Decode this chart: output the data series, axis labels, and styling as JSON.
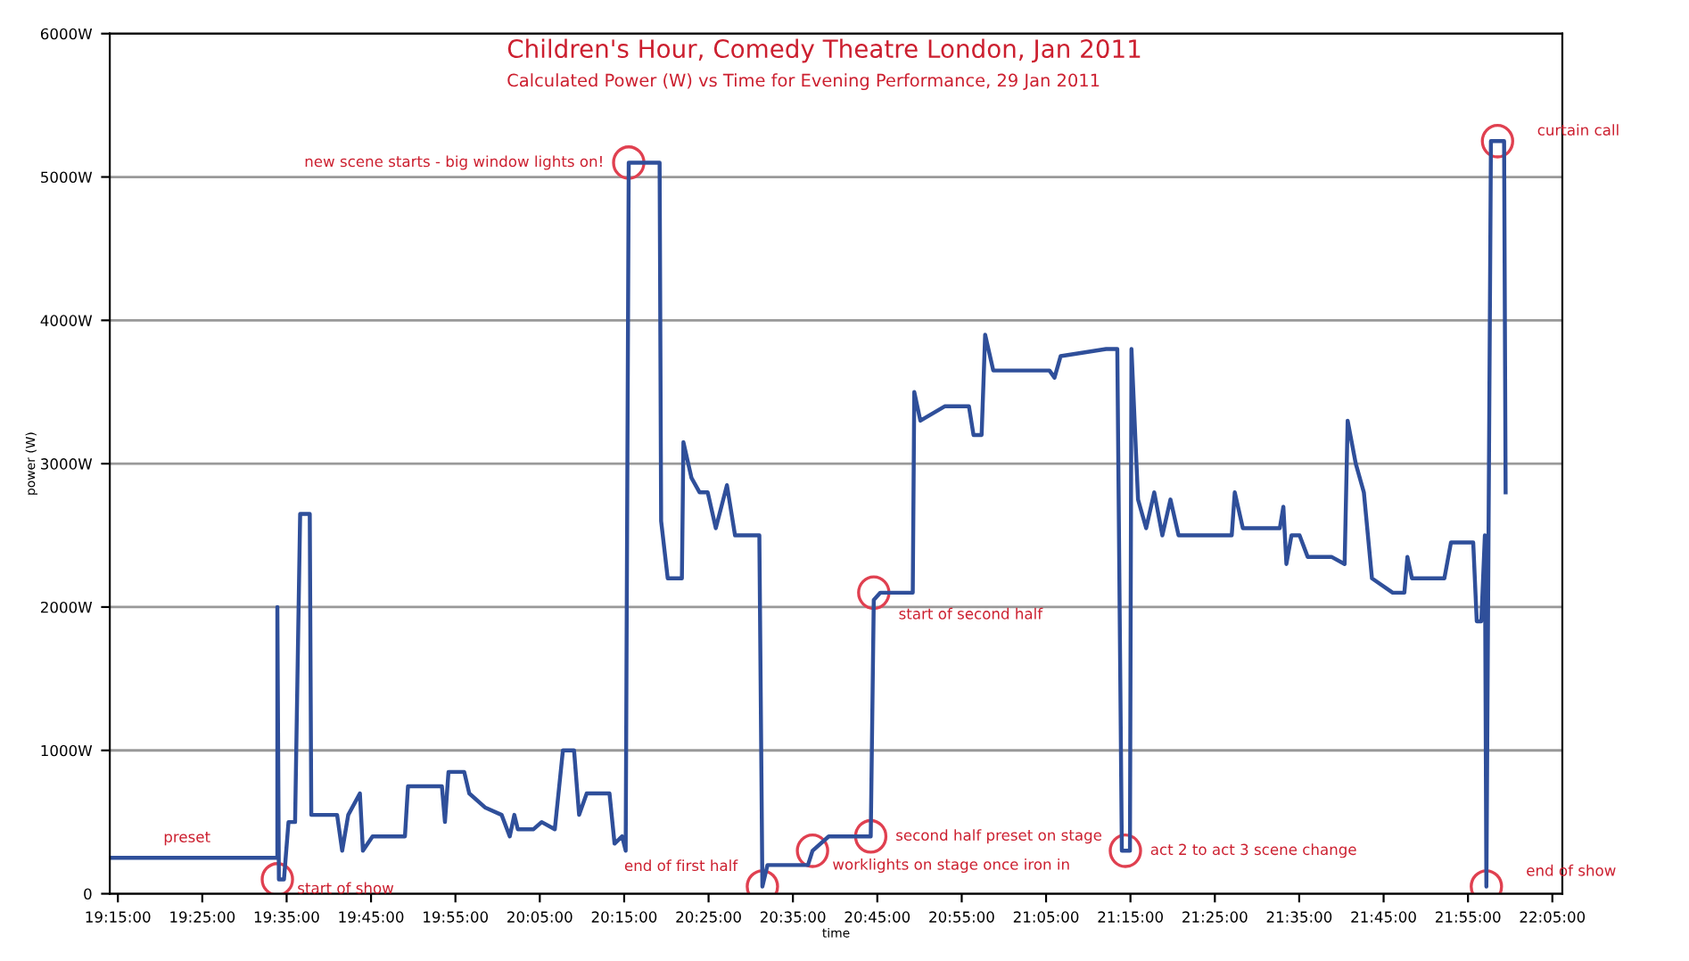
{
  "chart_data": {
    "type": "line",
    "title": "Children's Hour, Comedy Theatre London, Jan 2011",
    "subtitle": "Calculated Power (W) vs Time for Evening Performance, 29 Jan 2011",
    "xlabel": "time",
    "ylabel": "power (W)",
    "x": [
      19.234,
      19.562,
      19.565,
      19.565,
      19.568,
      19.578,
      19.587,
      19.6,
      19.61,
      19.629,
      19.632,
      19.683,
      19.693,
      19.705,
      19.728,
      19.734,
      19.753,
      19.817,
      19.823,
      19.89,
      19.896,
      19.903,
      19.934,
      19.944,
      19.976,
      20.008,
      20.024,
      20.033,
      20.04,
      20.071,
      20.087,
      20.113,
      20.129,
      20.151,
      20.161,
      20.176,
      20.221,
      20.231,
      20.246,
      20.253,
      20.259,
      20.32,
      20.323,
      20.336,
      20.364,
      20.367,
      20.383,
      20.399,
      20.415,
      20.431,
      20.453,
      20.469,
      20.517,
      20.523,
      20.533,
      20.613,
      20.622,
      20.654,
      20.737,
      20.743,
      20.756,
      20.82,
      20.823,
      20.835,
      20.883,
      20.931,
      20.94,
      20.956,
      20.963,
      20.979,
      21.09,
      21.1,
      21.112,
      21.202,
      21.224,
      21.233,
      21.249,
      21.252,
      21.265,
      21.281,
      21.297,
      21.313,
      21.329,
      21.345,
      21.386,
      21.45,
      21.456,
      21.472,
      21.545,
      21.552,
      21.558,
      21.568,
      21.584,
      21.6,
      21.647,
      21.673,
      21.679,
      21.695,
      21.711,
      21.727,
      21.768,
      21.791,
      21.797,
      21.806,
      21.87,
      21.883,
      21.927,
      21.934,
      21.943,
      21.95,
      21.953,
      21.962,
      21.988,
      21.991
    ],
    "series": [
      {
        "color": "#2f4f9a",
        "values": [
          250,
          250,
          250,
          2000,
          100,
          100,
          500,
          500,
          2650,
          2650,
          550,
          550,
          300,
          550,
          700,
          300,
          400,
          400,
          750,
          750,
          500,
          850,
          850,
          700,
          600,
          550,
          400,
          550,
          450,
          450,
          500,
          450,
          1000,
          1000,
          550,
          700,
          700,
          350,
          400,
          300,
          5100,
          5100,
          2600,
          2200,
          2200,
          3150,
          2900,
          2800,
          2800,
          2550,
          2850,
          2500,
          2500,
          50,
          200,
          200,
          300,
          400,
          400,
          2050,
          2100,
          2100,
          3500,
          3300,
          3400,
          3400,
          3200,
          3200,
          3900,
          3650,
          3650,
          3600,
          3750,
          3800,
          3800,
          300,
          300,
          3800,
          2750,
          2550,
          2800,
          2500,
          2750,
          2500,
          2500,
          2500,
          2800,
          2550,
          2550,
          2700,
          2300,
          2500,
          2500,
          2350,
          2350,
          2300,
          3300,
          3000,
          2800,
          2200,
          2100,
          2100,
          2350,
          2200,
          2200,
          2450,
          2450,
          1900,
          1900,
          2500,
          50,
          5250,
          5250,
          2800
        ]
      }
    ],
    "xlim": [
      19.234,
      22.103
    ],
    "xticks": [
      {
        "value": 19.25,
        "label": "19:15:00"
      },
      {
        "value": 19.4167,
        "label": "19:25:00"
      },
      {
        "value": 19.5833,
        "label": "19:35:00"
      },
      {
        "value": 19.75,
        "label": "19:45:00"
      },
      {
        "value": 19.9167,
        "label": "19:55:00"
      },
      {
        "value": 20.0833,
        "label": "20:05:00"
      },
      {
        "value": 20.25,
        "label": "20:15:00"
      },
      {
        "value": 20.4167,
        "label": "20:25:00"
      },
      {
        "value": 20.5833,
        "label": "20:35:00"
      },
      {
        "value": 20.75,
        "label": "20:45:00"
      },
      {
        "value": 20.9167,
        "label": "20:55:00"
      },
      {
        "value": 21.0833,
        "label": "21:05:00"
      },
      {
        "value": 21.25,
        "label": "21:15:00"
      },
      {
        "value": 21.4167,
        "label": "21:25:00"
      },
      {
        "value": 21.5833,
        "label": "21:35:00"
      },
      {
        "value": 21.75,
        "label": "21:45:00"
      },
      {
        "value": 21.9167,
        "label": "21:55:00"
      },
      {
        "value": 22.0833,
        "label": "22:05:00"
      }
    ],
    "ylim": [
      0,
      6000
    ],
    "yticks": [
      0,
      {
        "value": 1000,
        "label": "1000W"
      },
      {
        "value": 2000,
        "label": "2000W"
      },
      {
        "value": 3000,
        "label": "3000W"
      },
      {
        "value": 4000,
        "label": "4000W"
      },
      {
        "value": 5000,
        "label": "5000W"
      },
      {
        "value": 6000,
        "label": "6000W"
      }
    ],
    "grid": "y",
    "annotations": [
      {
        "text": "preset",
        "x": 19.34,
        "y": 250
      },
      {
        "text": "start of show",
        "x": 19.565,
        "y": 100
      },
      {
        "text": "new scene starts - big window lights on!",
        "x": 20.259,
        "y": 5100
      },
      {
        "text": "end of first half",
        "x": 20.523,
        "y": 50
      },
      {
        "text": "worklights on stage once iron in",
        "x": 20.622,
        "y": 300
      },
      {
        "text": "second half preset on stage",
        "x": 20.737,
        "y": 400
      },
      {
        "text": "start of second half",
        "x": 20.743,
        "y": 2100
      },
      {
        "text": "act 2 to act 3 scene change",
        "x": 21.24,
        "y": 300
      },
      {
        "text": "curtain call",
        "x": 21.975,
        "y": 5250
      },
      {
        "text": "end of show",
        "x": 21.953,
        "y": 50
      }
    ]
  }
}
